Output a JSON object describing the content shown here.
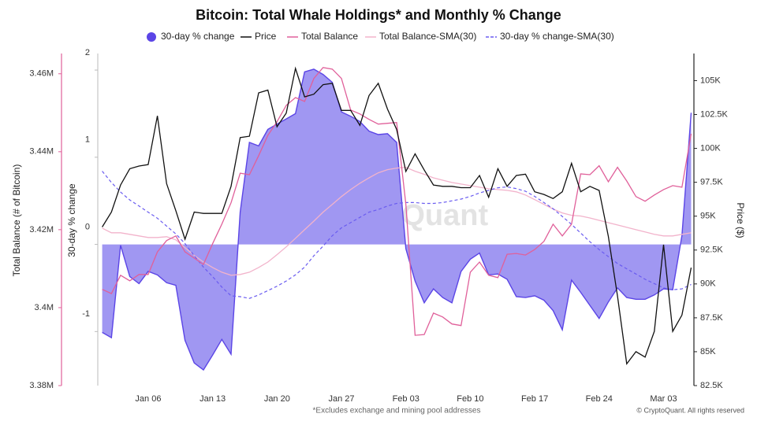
{
  "chart_data": {
    "type": "line",
    "title": "Bitcoin: Total Whale Holdings* and Monthly % Change",
    "footnote": "*Excludes exchange and mining pool addresses",
    "credit": "© CryptoQuant. All rights reserved",
    "watermark": "CryptoQuant",
    "y_label": "30-day % change",
    "y2_label": "Price ($)",
    "y3_label": "Total Balance (# of Bitcoin)",
    "categories": [
      null,
      null,
      null,
      null,
      null,
      "Jan 06",
      null,
      null,
      null,
      null,
      null,
      null,
      "Jan 13",
      null,
      null,
      null,
      null,
      null,
      null,
      "Jan 20",
      null,
      null,
      null,
      null,
      null,
      null,
      "Jan 27",
      null,
      null,
      null,
      null,
      null,
      null,
      "Feb 03",
      null,
      null,
      null,
      null,
      null,
      null,
      "Feb 10",
      null,
      null,
      null,
      null,
      null,
      null,
      "Feb 17",
      null,
      null,
      null,
      null,
      null,
      null,
      "Feb 24",
      null,
      null,
      null,
      null,
      null,
      null,
      "Mar 03",
      null,
      null,
      null
    ],
    "ylim": [
      -1.62,
      2.19
    ],
    "yticks": [
      -1,
      0,
      1,
      2
    ],
    "y2lim": [
      82500,
      107000
    ],
    "y2ticks": [
      {
        "value": 82500,
        "label": "82.5K"
      },
      {
        "value": 85000,
        "label": "85K"
      },
      {
        "value": 87500,
        "label": "87.5K"
      },
      {
        "value": 90000,
        "label": "90K"
      },
      {
        "value": 92500,
        "label": "92.5K"
      },
      {
        "value": 95000,
        "label": "95K"
      },
      {
        "value": 97500,
        "label": "97.5K"
      },
      {
        "value": 100000,
        "label": "100K"
      },
      {
        "value": 102500,
        "label": "102.5K"
      },
      {
        "value": 105000,
        "label": "105K"
      }
    ],
    "y3lim": [
      3380000,
      3465200
    ],
    "y3ticks": [
      {
        "value": 3380000,
        "label": "3.38M"
      },
      {
        "value": 3400000,
        "label": "3.4M"
      },
      {
        "value": 3420000,
        "label": "3.42M"
      },
      {
        "value": 3440000,
        "label": "3.44M"
      },
      {
        "value": 3460000,
        "label": "3.46M"
      }
    ],
    "grid": false,
    "series": [
      {
        "name": "30-day % change",
        "style": "area",
        "axis": "y",
        "color": "#5b45e6",
        "fill": "#a097f2",
        "values": [
          -1.01,
          -1.07,
          -0.01,
          -0.37,
          -0.45,
          -0.31,
          -0.35,
          -0.44,
          -0.47,
          -1.1,
          -1.36,
          -1.44,
          -1.27,
          -1.09,
          -1.26,
          0.37,
          1.17,
          1.13,
          1.32,
          1.38,
          1.44,
          1.5,
          1.98,
          2.01,
          1.95,
          1.86,
          1.52,
          1.47,
          1.41,
          1.3,
          1.26,
          1.27,
          1.17,
          -0.05,
          -0.42,
          -0.67,
          -0.51,
          -0.61,
          -0.67,
          -0.31,
          -0.17,
          -0.1,
          -0.35,
          -0.34,
          -0.4,
          -0.6,
          -0.61,
          -0.59,
          -0.64,
          -0.76,
          -0.98,
          -0.41,
          -0.55,
          -0.7,
          -0.85,
          -0.66,
          -0.5,
          -0.61,
          -0.63,
          -0.63,
          -0.58,
          -0.51,
          -0.52,
          0.1,
          1.51
        ]
      },
      {
        "name": "Price",
        "style": "line",
        "axis": "y2",
        "color": "#111111",
        "values": [
          94200,
          95300,
          97300,
          98500,
          98700,
          98800,
          102400,
          97400,
          95400,
          93300,
          95300,
          95200,
          95200,
          95200,
          97200,
          100800,
          100900,
          104100,
          104300,
          101600,
          102600,
          105900,
          103800,
          104000,
          104700,
          104800,
          102800,
          102800,
          101700,
          103900,
          104800,
          102900,
          101400,
          98300,
          99600,
          98400,
          97300,
          97200,
          97200,
          97100,
          97100,
          98000,
          96400,
          98500,
          97200,
          98000,
          98100,
          96800,
          96600,
          96300,
          96800,
          98900,
          96800,
          97200,
          96900,
          93500,
          89100,
          84100,
          85000,
          84600,
          86500,
          92900,
          86500,
          87700,
          91200
        ]
      },
      {
        "name": "Total Balance",
        "style": "line",
        "axis": "y3",
        "color": "#e0609a",
        "values": [
          3404700,
          3403600,
          3408300,
          3406900,
          3408500,
          3408500,
          3414300,
          3417200,
          3418400,
          3414300,
          3412700,
          3411100,
          3416400,
          3421400,
          3426900,
          3434500,
          3434100,
          3439000,
          3444200,
          3447700,
          3451900,
          3453900,
          3452900,
          3458800,
          3461600,
          3461200,
          3458800,
          3450700,
          3449700,
          3448300,
          3447100,
          3447300,
          3447500,
          3426500,
          3392900,
          3393100,
          3398600,
          3397600,
          3395800,
          3395400,
          3409100,
          3411700,
          3408300,
          3407700,
          3413700,
          3413900,
          3413500,
          3414900,
          3417000,
          3421400,
          3418400,
          3421400,
          3434300,
          3434100,
          3436400,
          3432300,
          3436000,
          3432500,
          3428500,
          3427300,
          3428900,
          3430300,
          3431300,
          3430900,
          3444600
        ]
      },
      {
        "name": "Total Balance-SMA(30)",
        "style": "line",
        "axis": "y3",
        "color": "#f2b3cb",
        "values": [
          3420400,
          3419200,
          3419200,
          3418800,
          3418400,
          3418000,
          3418000,
          3418200,
          3417400,
          3415400,
          3413400,
          3411700,
          3410300,
          3409100,
          3408300,
          3408500,
          3409100,
          3410300,
          3411700,
          3413600,
          3415600,
          3417800,
          3420000,
          3422200,
          3424500,
          3426500,
          3428500,
          3430300,
          3431900,
          3433300,
          3434600,
          3435400,
          3435800,
          3436000,
          3435000,
          3434200,
          3433300,
          3432700,
          3432100,
          3431700,
          3431300,
          3430900,
          3430500,
          3430300,
          3430100,
          3429700,
          3428900,
          3427700,
          3426500,
          3425300,
          3424300,
          3423700,
          3423500,
          3423000,
          3422400,
          3421800,
          3421200,
          3420600,
          3420000,
          3419400,
          3418800,
          3418400,
          3418400,
          3418800,
          3419200
        ]
      },
      {
        "name": "30-day % change-SMA(30)",
        "style": "dashed",
        "axis": "y",
        "color": "#6a5cf0",
        "values": [
          0.84,
          0.71,
          0.6,
          0.51,
          0.44,
          0.37,
          0.3,
          0.21,
          0.12,
          0.01,
          -0.13,
          -0.26,
          -0.37,
          -0.49,
          -0.59,
          -0.6,
          -0.62,
          -0.58,
          -0.53,
          -0.48,
          -0.42,
          -0.35,
          -0.26,
          -0.13,
          -0.02,
          0.1,
          0.19,
          0.25,
          0.31,
          0.37,
          0.4,
          0.44,
          0.47,
          0.48,
          0.48,
          0.47,
          0.47,
          0.48,
          0.5,
          0.52,
          0.55,
          0.59,
          0.62,
          0.65,
          0.66,
          0.64,
          0.61,
          0.55,
          0.48,
          0.41,
          0.32,
          0.23,
          0.13,
          0.03,
          -0.06,
          -0.14,
          -0.22,
          -0.28,
          -0.34,
          -0.4,
          -0.45,
          -0.5,
          -0.52,
          -0.51,
          -0.46
        ]
      }
    ]
  }
}
